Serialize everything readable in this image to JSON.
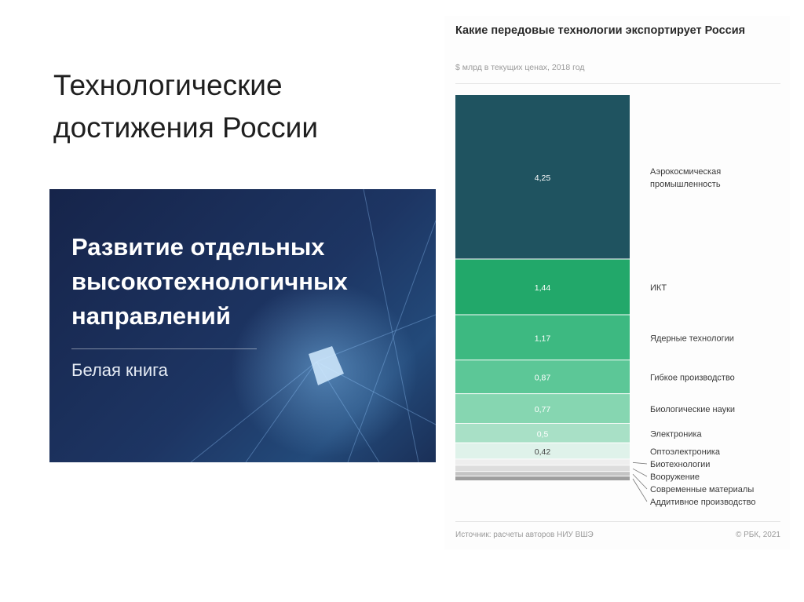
{
  "slide": {
    "title_line1": "Технологические",
    "title_line2": "достижения России"
  },
  "cover": {
    "heading_line1": "Развитие отдельных",
    "heading_line2": "высокотехнологичных",
    "heading_line3": "направлений",
    "subtitle": "Белая книга"
  },
  "chart_data": {
    "type": "bar",
    "stacked": true,
    "title": "Какие передовые технологии экспортирует Россия",
    "subtitle": "$ млрд в текущих ценах, 2018 год",
    "source": "Источник: расчеты авторов НИУ ВШЭ",
    "copyright": "© РБК, 2021",
    "segments": [
      {
        "label": "Аэрокосмическая промышленность",
        "value": 4.25,
        "value_label": "4,25",
        "color": "#1f5360",
        "label_lines": [
          "Аэрокосмическая",
          "промышленность"
        ]
      },
      {
        "label": "ИКТ",
        "value": 1.44,
        "value_label": "1,44",
        "color": "#22a86a",
        "label_lines": [
          "ИКТ"
        ]
      },
      {
        "label": "Ядерные технологии",
        "value": 1.17,
        "value_label": "1,17",
        "color": "#3db981",
        "label_lines": [
          "Ядерные технологии"
        ]
      },
      {
        "label": "Гибкое производство",
        "value": 0.87,
        "value_label": "0,87",
        "color": "#5cc797",
        "label_lines": [
          "Гибкое производство"
        ]
      },
      {
        "label": "Биологические науки",
        "value": 0.77,
        "value_label": "0,77",
        "color": "#86d6b1",
        "label_lines": [
          "Биологические науки"
        ]
      },
      {
        "label": "Электроника",
        "value": 0.5,
        "value_label": "0,5",
        "color": "#a8e0c6",
        "label_lines": [
          "Электроника"
        ]
      },
      {
        "label": "Оптоэлектроника",
        "value": 0.42,
        "value_label": "0,42",
        "color": "#dff2ea",
        "label_lines": [
          "Оптоэлектроника"
        ]
      },
      {
        "label": "Биотехнологии",
        "value": 0.16,
        "value_label": "",
        "color": "#eeeeee",
        "label_lines": [
          "Биотехнологии"
        ]
      },
      {
        "label": "Вооружение",
        "value": 0.16,
        "value_label": "",
        "color": "#dddddd",
        "label_lines": [
          "Вооружение"
        ]
      },
      {
        "label": "Современные материалы",
        "value": 0.12,
        "value_label": "",
        "color": "#c4c4c4",
        "label_lines": [
          "Современные материалы"
        ]
      },
      {
        "label": "Аддитивное производство",
        "value": 0.12,
        "value_label": "",
        "color": "#9e9e9e",
        "label_lines": [
          "Аддитивное производство"
        ]
      }
    ]
  }
}
